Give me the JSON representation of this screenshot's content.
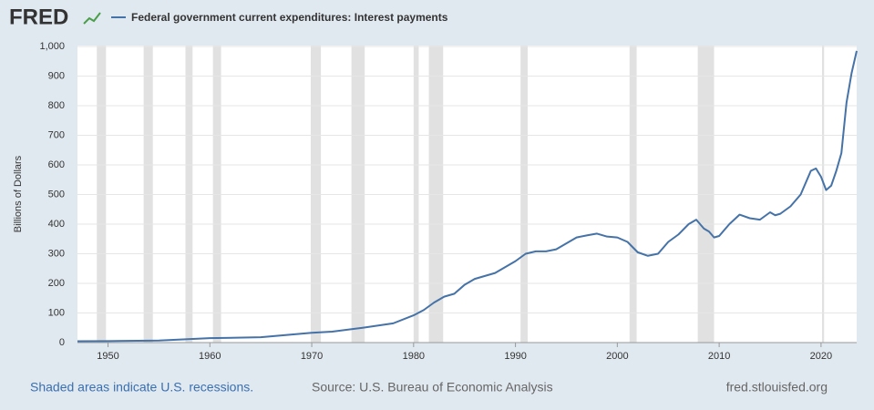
{
  "chart_data": {
    "type": "line",
    "logo": "FRED",
    "title": "Federal government current expenditures: Interest payments",
    "y_label": "Billions of Dollars",
    "recession_note": "Shaded areas indicate U.S. recessions.",
    "source": "Source: U.S. Bureau of Economic Analysis",
    "site": "fred.stlouisfed.org",
    "xlim": [
      1947,
      2023.5
    ],
    "xticks": [
      1950,
      1960,
      1970,
      1980,
      1990,
      2000,
      2010,
      2020
    ],
    "ylim": [
      0,
      1000
    ],
    "yticks": [
      0,
      100,
      200,
      300,
      400,
      500,
      600,
      700,
      800,
      900,
      {
        "value": 1000,
        "label": "1,000"
      }
    ],
    "grid": true,
    "recession_color": "#e1e1e1",
    "recessions": [
      [
        1948.9,
        1949.8
      ],
      [
        1953.5,
        1954.4
      ],
      [
        1957.6,
        1958.3
      ],
      [
        1960.3,
        1961.1
      ],
      [
        1969.9,
        1970.9
      ],
      [
        1973.9,
        1975.2
      ],
      [
        1980.0,
        1980.5
      ],
      [
        1981.5,
        1982.9
      ],
      [
        1990.5,
        1991.2
      ],
      [
        2001.2,
        2001.9
      ],
      [
        2007.9,
        2009.5
      ],
      [
        2020.1,
        2020.3
      ]
    ],
    "x": [
      1947,
      1950,
      1955,
      1960,
      1965,
      1970,
      1972,
      1975,
      1978,
      1980,
      1981,
      1982,
      1983,
      1984,
      1985,
      1986,
      1987,
      1988,
      1989,
      1990,
      1991,
      1992,
      1993,
      1994,
      1995,
      1996,
      1997,
      1998,
      1999,
      2000,
      2001,
      2002,
      2003,
      2004,
      2005,
      2006,
      2007,
      2007.75,
      2008.5,
      2009,
      2009.5,
      2010,
      2011,
      2012,
      2013,
      2014,
      2015,
      2015.5,
      2016,
      2017,
      2018,
      2019,
      2019.5,
      2020,
      2020.5,
      2021,
      2021.5,
      2022,
      2022.5,
      2023,
      2023.5
    ],
    "series": [
      {
        "name": "Federal government current expenditures: Interest payments",
        "color": "#4572a7",
        "values": [
          4.5,
          5,
          7,
          15,
          18,
          33,
          37,
          50,
          65,
          92,
          110,
          135,
          155,
          165,
          195,
          215,
          225,
          235,
          255,
          275,
          300,
          308,
          308,
          315,
          335,
          355,
          362,
          368,
          358,
          355,
          340,
          305,
          293,
          300,
          340,
          365,
          400,
          415,
          385,
          375,
          355,
          360,
          400,
          432,
          420,
          415,
          440,
          430,
          435,
          460,
          500,
          580,
          588,
          560,
          515,
          530,
          580,
          640,
          810,
          910,
          985
        ]
      }
    ]
  }
}
